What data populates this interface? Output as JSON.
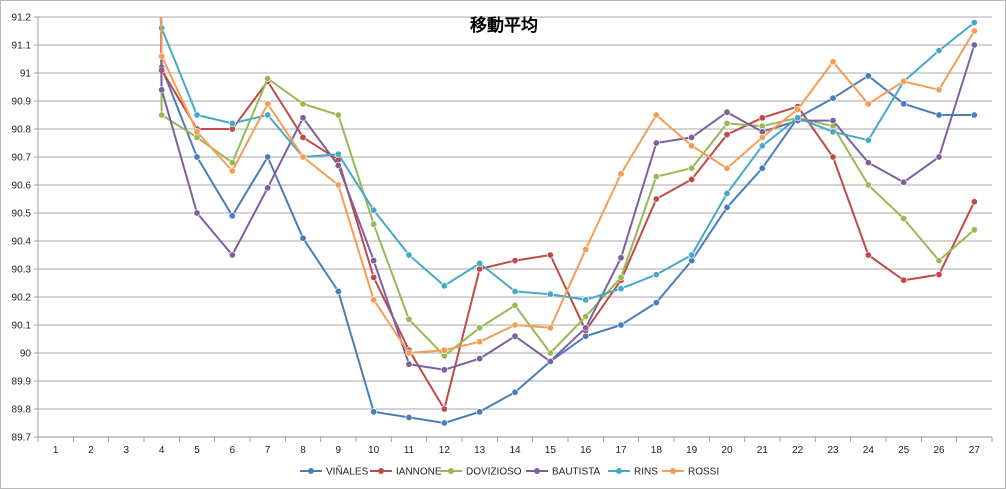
{
  "chart_data": {
    "type": "line",
    "title": "移動平均",
    "xlabel": "",
    "ylabel": "",
    "x": [
      1,
      2,
      3,
      4,
      5,
      6,
      7,
      8,
      9,
      10,
      11,
      12,
      13,
      14,
      15,
      16,
      17,
      18,
      19,
      20,
      21,
      22,
      23,
      24,
      25,
      26,
      27
    ],
    "ylim": [
      89.7,
      91.2
    ],
    "yticks": [
      "89.7",
      "89.8",
      "89.9",
      "90",
      "90.1",
      "90.2",
      "90.3",
      "90.4",
      "90.5",
      "90.6",
      "90.7",
      "90.8",
      "90.9",
      "91",
      "91.1",
      "91.2"
    ],
    "xticks": [
      "1",
      "2",
      "3",
      "4",
      "5",
      "6",
      "7",
      "8",
      "9",
      "10",
      "11",
      "12",
      "13",
      "14",
      "15",
      "16",
      "17",
      "18",
      "19",
      "20",
      "21",
      "22",
      "23",
      "24",
      "25",
      "26",
      "27"
    ],
    "grid": "horizontal",
    "legend_position": "bottom",
    "series": [
      {
        "name": "VIÑALES",
        "color": "#4a7ebb",
        "values": [
          null,
          null,
          null,
          91.02,
          90.7,
          90.49,
          90.7,
          90.41,
          90.22,
          89.79,
          89.77,
          89.75,
          89.79,
          89.86,
          89.97,
          90.06,
          90.1,
          90.18,
          90.33,
          90.52,
          90.66,
          90.84,
          90.91,
          90.99,
          90.89,
          90.85,
          90.85
        ]
      },
      {
        "name": "IANNONE",
        "color": "#be4b48",
        "values": [
          null,
          null,
          null,
          91.01,
          90.8,
          90.8,
          90.97,
          90.77,
          90.69,
          90.27,
          90.01,
          89.8,
          90.3,
          90.33,
          90.35,
          90.08,
          90.26,
          90.55,
          90.62,
          90.78,
          90.84,
          90.88,
          90.7,
          90.35,
          90.26,
          90.28,
          90.54
        ]
      },
      {
        "name": "DOVIZIOSO",
        "color": "#98b954",
        "values": [
          null,
          null,
          null,
          90.85,
          90.77,
          90.68,
          90.98,
          90.89,
          90.85,
          90.46,
          90.12,
          89.99,
          90.09,
          90.17,
          90.0,
          90.13,
          90.27,
          90.63,
          90.66,
          90.82,
          90.81,
          90.84,
          90.81,
          90.6,
          90.48,
          90.33,
          90.44
        ]
      },
      {
        "name": "BAUTISTA",
        "color": "#7d60a0",
        "values": [
          null,
          null,
          null,
          90.94,
          90.5,
          90.35,
          90.59,
          90.84,
          90.67,
          90.33,
          89.96,
          89.94,
          89.98,
          90.06,
          89.97,
          90.09,
          90.34,
          90.75,
          90.77,
          90.86,
          90.79,
          90.83,
          90.83,
          90.68,
          90.61,
          90.7,
          91.1
        ]
      },
      {
        "name": "RINS",
        "color": "#46aac5",
        "values": [
          null,
          null,
          null,
          91.16,
          90.85,
          90.82,
          90.85,
          90.7,
          90.71,
          90.51,
          90.35,
          90.24,
          90.32,
          90.22,
          90.21,
          90.19,
          90.23,
          90.28,
          90.35,
          90.57,
          90.74,
          90.84,
          90.79,
          90.76,
          90.97,
          91.08,
          91.18
        ]
      },
      {
        "name": "ROSSI",
        "color": "#f59d56",
        "values": [
          null,
          null,
          null,
          91.06,
          90.79,
          90.65,
          90.89,
          90.7,
          90.6,
          90.19,
          90.0,
          90.01,
          90.04,
          90.1,
          90.09,
          90.37,
          90.64,
          90.85,
          90.74,
          90.66,
          90.77,
          90.87,
          91.04,
          90.89,
          90.97,
          90.94,
          91.15
        ]
      }
    ]
  }
}
